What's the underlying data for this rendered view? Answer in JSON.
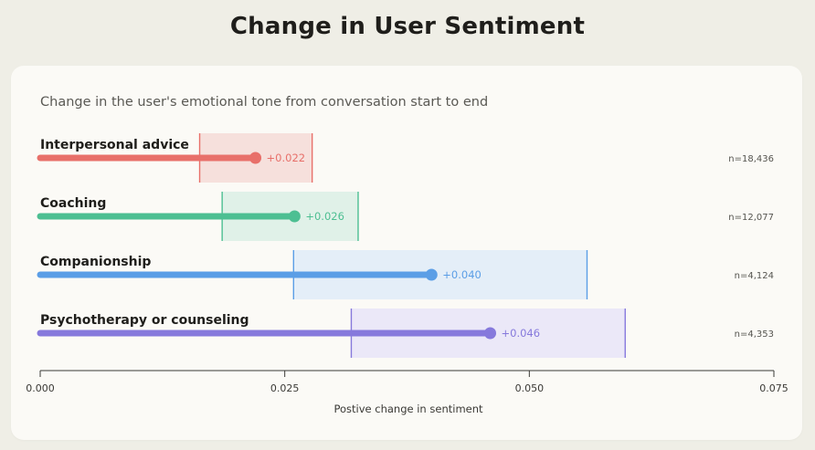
{
  "title": "Change in User Sentiment",
  "subtitle": "Change in the user's emotional tone from conversation start to end",
  "chart_data": {
    "type": "dot-with-interval",
    "title": "Change in User Sentiment",
    "subtitle": "Change in the user's emotional tone from conversation start to end",
    "xlabel": "Postive change in sentiment",
    "xlim": [
      0.0,
      0.075
    ],
    "xticks": [
      "0.000",
      "0.025",
      "0.050",
      "0.075"
    ],
    "categories": [
      "Interpersonal advice",
      "Coaching",
      "Companionship",
      "Psychotherapy or counseling"
    ],
    "values": [
      0.022,
      0.026,
      0.04,
      0.046
    ],
    "value_labels": [
      "+0.022",
      "+0.026",
      "+0.040",
      "+0.046"
    ],
    "ci_low": [
      0.0163,
      0.0186,
      0.0259,
      0.0318
    ],
    "ci_high": [
      0.0278,
      0.0325,
      0.0559,
      0.0598
    ],
    "n_labels": [
      "n=18,436",
      "n=12,077",
      "n=4,124",
      "n=4,353"
    ],
    "colors": [
      "#e8706a",
      "#4dbf92",
      "#5b9ee6",
      "#8679dc"
    ],
    "fill_colors": [
      "#f6e0dc",
      "#e0f1e8",
      "#e4eef8",
      "#ebe8f8"
    ],
    "grid": false
  }
}
